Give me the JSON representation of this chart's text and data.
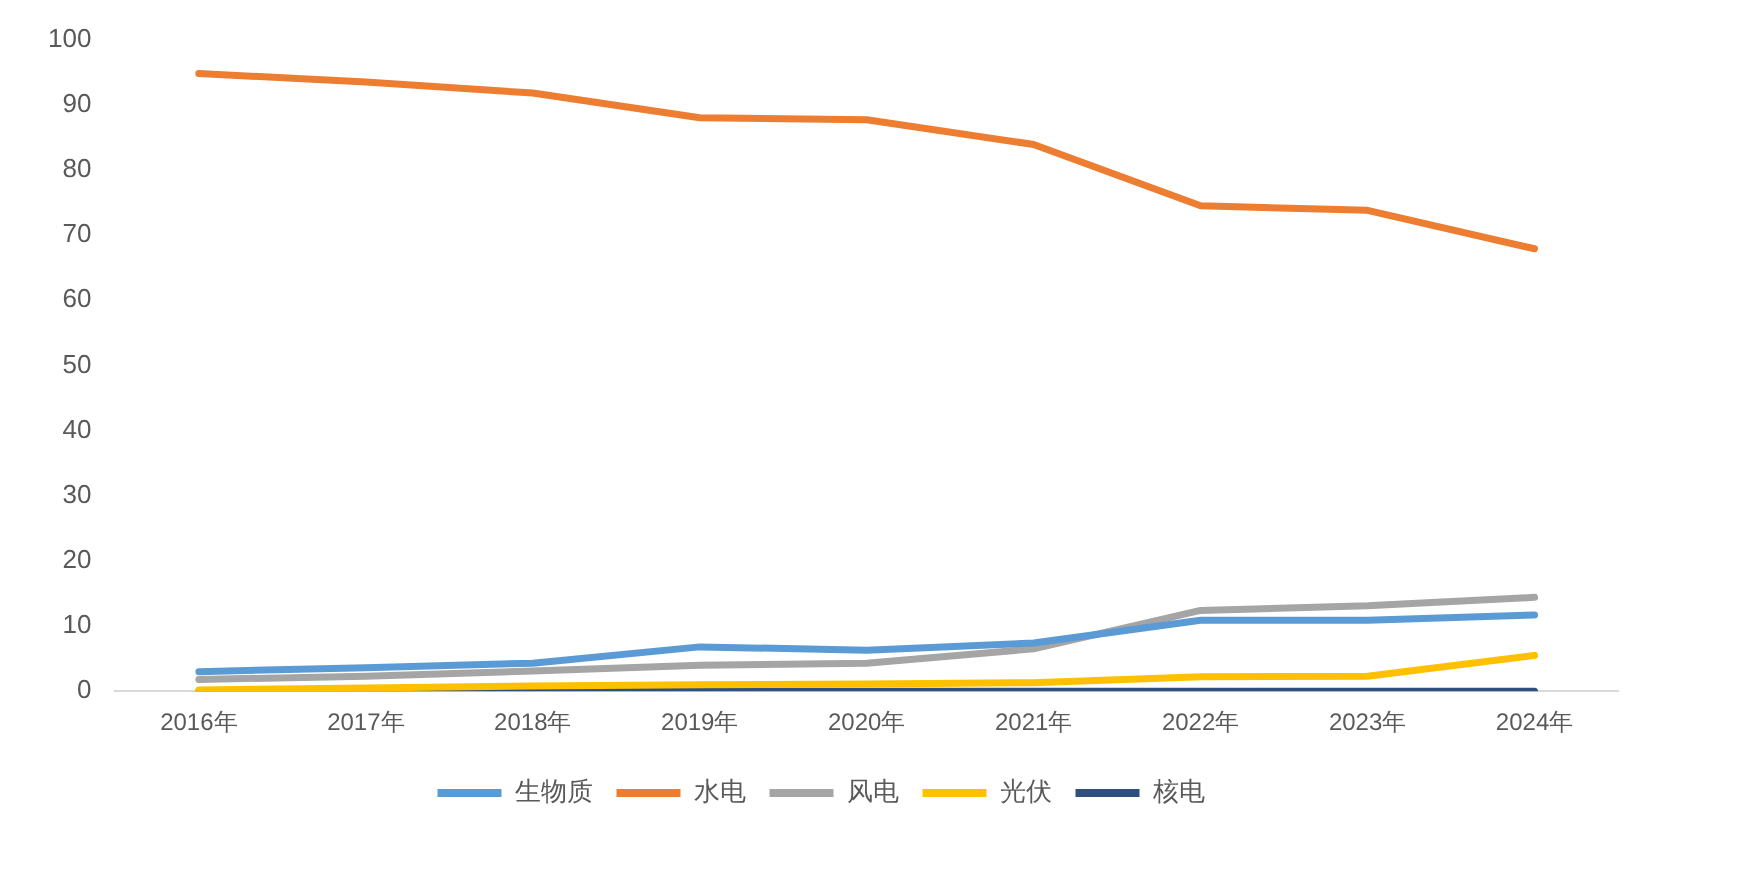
{
  "chart_data": {
    "type": "line",
    "categories": [
      "2016年",
      "2017年",
      "2018年",
      "2019年",
      "2020年",
      "2021年",
      "2022年",
      "2023年",
      "2024年"
    ],
    "series": [
      {
        "name": "生物质",
        "color": "#5b9bd5",
        "values": [
          3.0,
          3.6,
          4.3,
          6.8,
          6.3,
          7.4,
          10.9,
          10.9,
          11.7
        ]
      },
      {
        "name": "水电",
        "color": "#ed7d31",
        "values": [
          94.8,
          93.5,
          91.8,
          88.0,
          87.7,
          83.9,
          74.5,
          73.8,
          67.9
        ]
      },
      {
        "name": "风电",
        "color": "#a5a5a5",
        "values": [
          1.8,
          2.3,
          3.1,
          4.0,
          4.3,
          6.5,
          12.4,
          13.1,
          14.4
        ]
      },
      {
        "name": "光伏",
        "color": "#ffc000",
        "values": [
          0.2,
          0.5,
          0.8,
          1.0,
          1.1,
          1.3,
          2.2,
          2.3,
          5.5
        ]
      },
      {
        "name": "核电",
        "color": "#2f4f7f",
        "values": [
          0,
          0,
          0,
          0,
          0,
          0,
          0,
          0,
          0
        ]
      }
    ],
    "ylim": [
      0,
      100
    ],
    "yticks": [
      0,
      10,
      20,
      30,
      40,
      50,
      60,
      70,
      80,
      90,
      100
    ],
    "legend": "bottom",
    "marker": "none"
  }
}
